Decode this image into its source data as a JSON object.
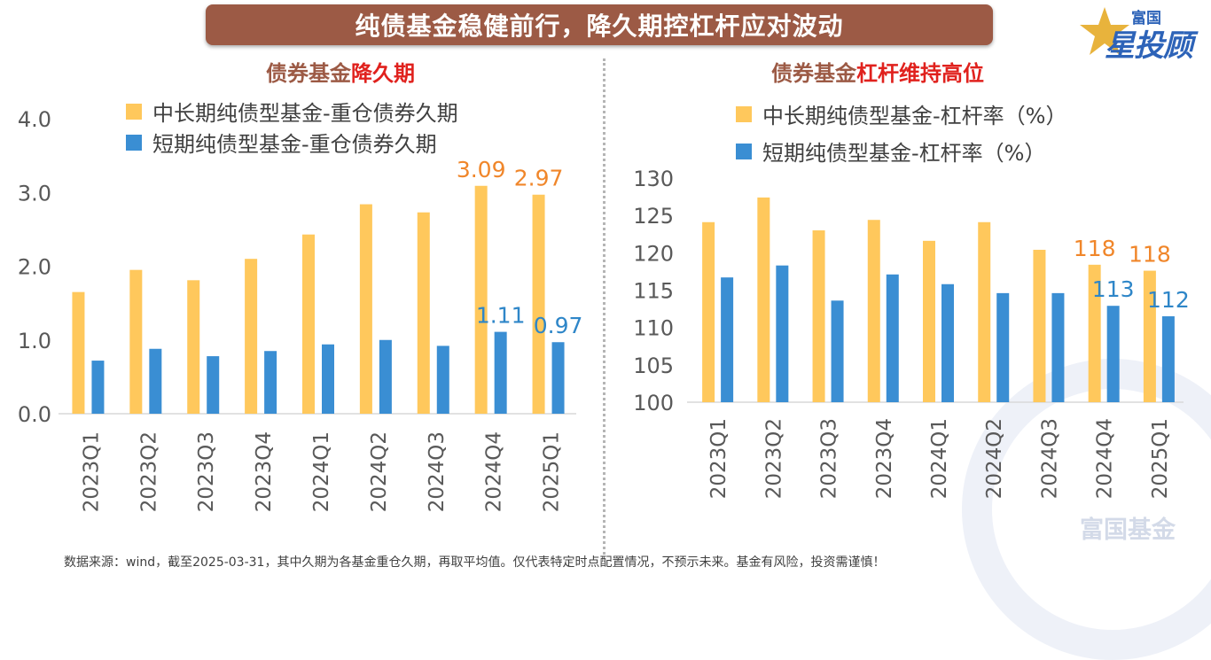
{
  "banner": {
    "title": "纯债基金稳健前行，降久期控杠杆应对波动"
  },
  "logo": {
    "line1": "富国",
    "line2": "星投顾",
    "star_color": "#e8b33c",
    "text_color": "#2d63b8"
  },
  "watermark": {
    "text": "富国基金"
  },
  "footnote": "数据来源：wind，截至2025-03-31，其中久期为各基金重仓久期，再取平均值。仅代表特定时点配置情况，不预示未来。基金有风险，投资需谨慎！",
  "colors": {
    "series_long": "#ffc85c",
    "series_short": "#3a8ed3",
    "label_long": "#f0862a",
    "label_short": "#2e86c8",
    "title": "#9c5a45",
    "title_highlight": "#e0211d"
  },
  "chart_data": [
    {
      "type": "bar",
      "title_plain": "债券基金",
      "title_highlight": "降久期",
      "categories": [
        "2023Q1",
        "2023Q2",
        "2023Q3",
        "2023Q4",
        "2024Q1",
        "2024Q2",
        "2024Q3",
        "2024Q4",
        "2025Q1"
      ],
      "series": [
        {
          "name": "中长期纯债型基金-重仓债券久期",
          "values": [
            1.65,
            1.95,
            1.81,
            2.1,
            2.43,
            2.84,
            2.73,
            3.09,
            2.97
          ]
        },
        {
          "name": "短期纯债型基金-重仓债券久期",
          "values": [
            0.72,
            0.88,
            0.78,
            0.85,
            0.94,
            1.0,
            0.92,
            1.11,
            0.97
          ]
        }
      ],
      "data_labels": [
        {
          "series": 0,
          "index": 7,
          "text": "3.09"
        },
        {
          "series": 0,
          "index": 8,
          "text": "2.97"
        },
        {
          "series": 1,
          "index": 7,
          "text": "1.11"
        },
        {
          "series": 1,
          "index": 8,
          "text": "0.97"
        }
      ],
      "yticks": [
        "0.0",
        "1.0",
        "2.0",
        "3.0",
        "4.0"
      ],
      "ylim": [
        0,
        4
      ],
      "grid": false,
      "legend_position": "top"
    },
    {
      "type": "bar",
      "title_plain": "债券基金",
      "title_highlight": "杠杆维持高位",
      "categories": [
        "2023Q1",
        "2023Q2",
        "2023Q3",
        "2023Q4",
        "2024Q1",
        "2024Q2",
        "2024Q3",
        "2024Q4",
        "2025Q1"
      ],
      "series": [
        {
          "name": "中长期纯债型基金-杠杆率（%）",
          "values": [
            124.1,
            127.4,
            123.0,
            124.4,
            121.6,
            124.1,
            120.4,
            118.4,
            117.6
          ]
        },
        {
          "name": "短期纯债型基金-杠杆率（%）",
          "values": [
            116.7,
            118.3,
            113.6,
            117.1,
            115.8,
            114.6,
            114.6,
            112.9,
            111.5
          ]
        }
      ],
      "data_labels": [
        {
          "series": 0,
          "index": 7,
          "text": "118"
        },
        {
          "series": 0,
          "index": 8,
          "text": "118"
        },
        {
          "series": 1,
          "index": 7,
          "text": "113"
        },
        {
          "series": 1,
          "index": 8,
          "text": "112"
        }
      ],
      "yticks": [
        "100",
        "105",
        "110",
        "115",
        "120",
        "125",
        "130"
      ],
      "ylim": [
        100,
        130
      ],
      "grid": false,
      "legend_position": "top"
    }
  ]
}
